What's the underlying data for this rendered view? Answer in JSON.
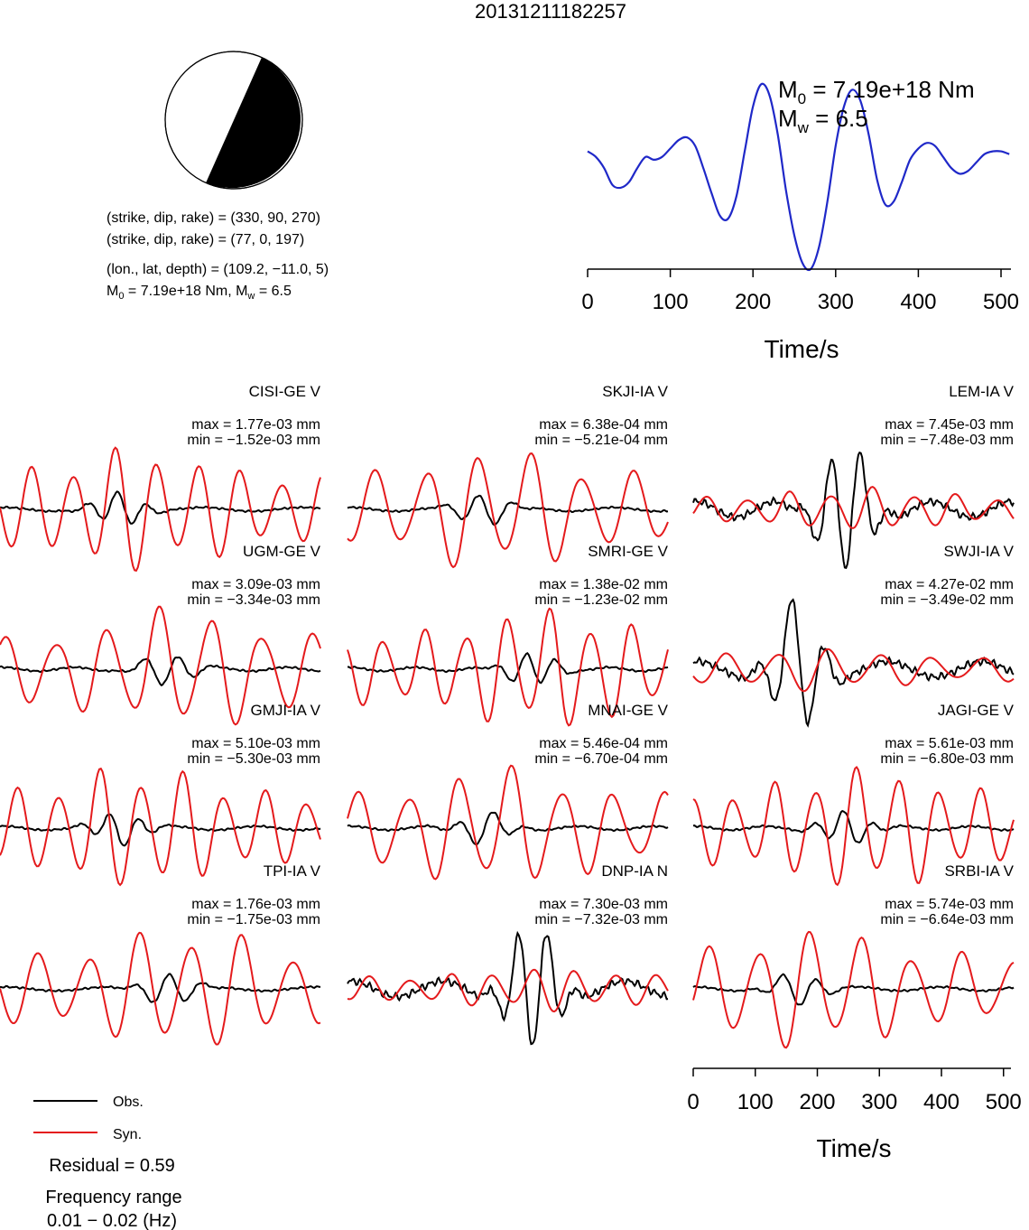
{
  "title": "20131211182257",
  "beachball": {
    "compressional_color": "#000000",
    "dilatational_color": "#ffffff"
  },
  "info_lines": {
    "np1": "(strike, dip, rake) = (330, 90, 270)",
    "np2": "(strike, dip, rake) = (77, 0, 197)",
    "location": "(lon., lat, depth) = (109.2, −11.0, 5)",
    "m0_prefix": "M",
    "m0_sub": "0",
    "m0_text": " = 7.19e+18 Nm, M",
    "mw_sub": "w",
    "mw_text": " = 6.5"
  },
  "stf_labels": {
    "m0_main": "M",
    "m0_sub": "0",
    "m0_value": " = 7.19e+18 Nm",
    "mw_main": "M",
    "mw_sub": "w",
    "mw_value": " = 6.5"
  },
  "stf_axis": {
    "xlabel": "Time/s",
    "ticks": [
      "0",
      "100",
      "200",
      "300",
      "400",
      "500"
    ]
  },
  "wave_axis": {
    "xlabel": "Time/s",
    "ticks": [
      "0",
      "100",
      "200",
      "300",
      "400",
      "500"
    ]
  },
  "legend": {
    "obs": "Obs.",
    "syn": "Syn."
  },
  "residual": "Residual = 0.59",
  "freq_label": "Frequency range",
  "freq_value": "0.01 − 0.02 (Hz)",
  "colors": {
    "observed": "#000000",
    "synthetic": "#e41a1c",
    "stf": "#1f28c8"
  },
  "chart_data": [
    {
      "type": "line",
      "title": "",
      "xlabel": "Time/s",
      "ylabel": "",
      "xlim": [
        0,
        512
      ],
      "series": [
        {
          "name": "",
          "x": [
            0,
            10,
            20,
            30,
            40,
            50,
            60,
            70,
            80,
            90,
            100,
            110,
            120,
            130,
            140,
            150,
            160,
            170,
            180,
            190,
            200,
            210,
            220,
            230,
            240,
            250,
            260,
            270,
            280,
            290,
            300,
            310,
            320,
            330,
            340,
            350,
            360,
            370,
            380,
            390,
            400,
            410,
            420,
            430,
            440,
            450,
            460,
            470,
            480,
            490,
            500,
            510
          ],
          "values": [
            0.2,
            0.1,
            -0.1,
            -0.4,
            -0.45,
            -0.35,
            -0.1,
            0.1,
            0.05,
            0.1,
            0.25,
            0.4,
            0.45,
            0.3,
            -0.1,
            -0.55,
            -0.95,
            -1.0,
            -0.6,
            0.2,
            1.0,
            1.4,
            1.2,
            0.5,
            -0.5,
            -1.3,
            -1.8,
            -1.9,
            -1.5,
            -0.7,
            0.3,
            1.0,
            1.3,
            1.1,
            0.5,
            -0.3,
            -0.75,
            -0.7,
            -0.35,
            0.05,
            0.25,
            0.35,
            0.3,
            0.1,
            -0.1,
            -0.2,
            -0.15,
            0.0,
            0.15,
            0.2,
            0.2,
            0.15
          ]
        }
      ]
    },
    {
      "type": "line",
      "xlim": [
        0,
        512
      ],
      "xlabel": "Time/s",
      "stations": [
        {
          "name": "CISI-GE V",
          "max": "max = 1.77e-03 mm",
          "min": "min = −1.52e-03 mm"
        },
        {
          "name": "SKJI-IA V",
          "max": "max = 6.38e-04 mm",
          "min": "min = −5.21e-04 mm"
        },
        {
          "name": "LEM-IA V",
          "max": "max = 7.45e-03 mm",
          "min": "min = −7.48e-03 mm"
        },
        {
          "name": "UGM-GE V",
          "max": "max = 3.09e-03 mm",
          "min": "min = −3.34e-03 mm"
        },
        {
          "name": "SMRI-GE V",
          "max": "max = 1.38e-02 mm",
          "min": "min = −1.23e-02 mm"
        },
        {
          "name": "SWJI-IA V",
          "max": "max = 4.27e-02 mm",
          "min": "min = −3.49e-02 mm"
        },
        {
          "name": "GMJI-IA V",
          "max": "max = 5.10e-03 mm",
          "min": "min = −5.30e-03 mm"
        },
        {
          "name": "MNAI-GE V",
          "max": "max = 5.46e-04 mm",
          "min": "min = −6.70e-04 mm"
        },
        {
          "name": "JAGI-GE V",
          "max": "max = 5.61e-03 mm",
          "min": "min = −6.80e-03 mm"
        },
        {
          "name": "TPI-IA V",
          "max": "max = 1.76e-03 mm",
          "min": "min = −1.75e-03 mm"
        },
        {
          "name": "DNP-IA N",
          "max": "max = 7.30e-03 mm",
          "min": "min = −7.32e-03 mm"
        },
        {
          "name": "SRBI-IA V",
          "max": "max = 5.74e-03 mm",
          "min": "min = −6.64e-03 mm"
        }
      ]
    }
  ]
}
